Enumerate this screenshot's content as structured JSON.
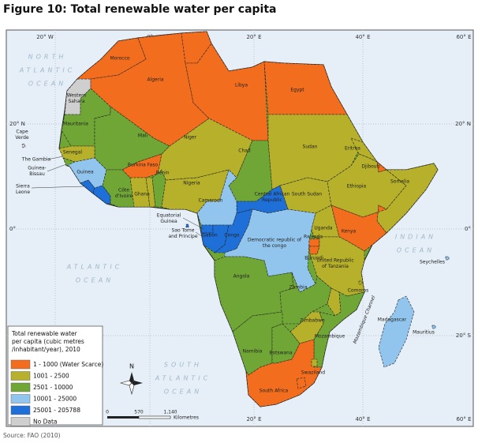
{
  "title": "Figure 10: Total renewable water per capita",
  "source": "Source: FAO (2010)",
  "graticule": {
    "top": [
      "20° W",
      "0°",
      "20° E",
      "40° E",
      "60° E"
    ],
    "bottom": [
      "20° E",
      "40° E",
      "60° E"
    ],
    "left": [
      "20° N",
      "0°"
    ],
    "right": [
      "20° N",
      "0°",
      "20° S"
    ]
  },
  "oceans": [
    [
      "NORTH",
      "ATLANTIC",
      "OCEAN"
    ],
    [
      "ATLANTIC",
      "OCEAN"
    ],
    [
      "SOUTH",
      "ATLANTIC",
      "OCEAN"
    ],
    [
      "INDIAN",
      "OCEAN"
    ]
  ],
  "channel": "Mozambique Channel",
  "countries": [
    [
      "Morocco"
    ],
    [
      "Western",
      "Sahara"
    ],
    [
      "Algeria"
    ],
    [
      "Libya"
    ],
    [
      "Egypt"
    ],
    [
      "Mauritania"
    ],
    [
      "Mali"
    ],
    [
      "Niger"
    ],
    [
      "Chad"
    ],
    [
      "Sudan"
    ],
    [
      "Eritrea"
    ],
    [
      "Djibouti"
    ],
    [
      "Somalia"
    ],
    [
      "Ethiopia"
    ],
    [
      "South Sudan"
    ],
    [
      "Central African",
      "Republic"
    ],
    [
      "Cameroon"
    ],
    [
      "Nigeria"
    ],
    [
      "Benin"
    ],
    [
      "Burkina Faso"
    ],
    [
      "Ghana"
    ],
    [
      "Côte",
      "d'Ivoire"
    ],
    [
      "Guinea"
    ],
    [
      "Senegal"
    ],
    [
      "The Gambia"
    ],
    [
      "Guinea-",
      "Bissau"
    ],
    [
      "Sierra",
      "Leone"
    ],
    [
      "Cape",
      "Verde"
    ],
    [
      "Equatorial",
      "Guinea"
    ],
    [
      "Sao Tome",
      "and Principe"
    ],
    [
      "Gabon"
    ],
    [
      "Congo"
    ],
    [
      "Democratic republic of",
      "the congo"
    ],
    [
      "Uganda"
    ],
    [
      "Kenya"
    ],
    [
      "Rwanda"
    ],
    [
      "Burundi"
    ],
    [
      "United Republic",
      "of Tanzania"
    ],
    [
      "Angola"
    ],
    [
      "Zambia"
    ],
    [
      "Mozambique"
    ],
    [
      "Zimbabwe"
    ],
    [
      "Namibia"
    ],
    [
      "Botswana"
    ],
    [
      "Swaziland"
    ],
    [
      "South Africa"
    ],
    [
      "Madagascar"
    ],
    [
      "Comoros"
    ],
    [
      "Seychelles"
    ],
    [
      "Mauritius"
    ]
  ],
  "legend": {
    "title": [
      "Total renewable water",
      "per capita (cubic metres",
      "/inhabitant/year), 2010"
    ],
    "items": [
      {
        "label": "1 - 1000 (Water Scarce)",
        "color": "#f26d1d"
      },
      {
        "label": "1001 - 2500",
        "color": "#b6b02b"
      },
      {
        "label": "2501 - 10000",
        "color": "#70a636"
      },
      {
        "label": "10001 - 25000",
        "color": "#92c5ee"
      },
      {
        "label": "25001 - 205788",
        "color": "#1f6fd8"
      },
      {
        "label": "No Data",
        "color": "#cfcfcf"
      }
    ]
  },
  "scale_bar": {
    "labels": [
      "0",
      "570",
      "1,140"
    ],
    "unit": "Kilometres"
  },
  "north": "N"
}
